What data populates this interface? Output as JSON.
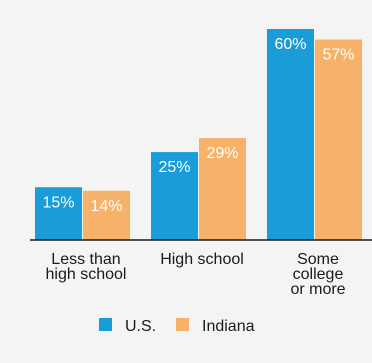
{
  "chart_data": {
    "type": "bar",
    "categories": [
      [
        "Less than",
        "high school"
      ],
      [
        "High school"
      ],
      [
        "Some",
        "college",
        "or more"
      ]
    ],
    "series": [
      {
        "name": "U.S.",
        "values": [
          15,
          25,
          60
        ],
        "labels": [
          "15%",
          "25%",
          "60%"
        ]
      },
      {
        "name": "Indiana",
        "values": [
          14,
          29,
          57
        ],
        "labels": [
          "14%",
          "29%",
          "57%"
        ]
      }
    ],
    "ylim": [
      0,
      60
    ],
    "grid": false,
    "legend": "bottom"
  },
  "colors": {
    "us": "#1a9cd8",
    "indiana": "#f7b26a",
    "background": "#f4f4f4",
    "axis": "#1a1a1a"
  }
}
